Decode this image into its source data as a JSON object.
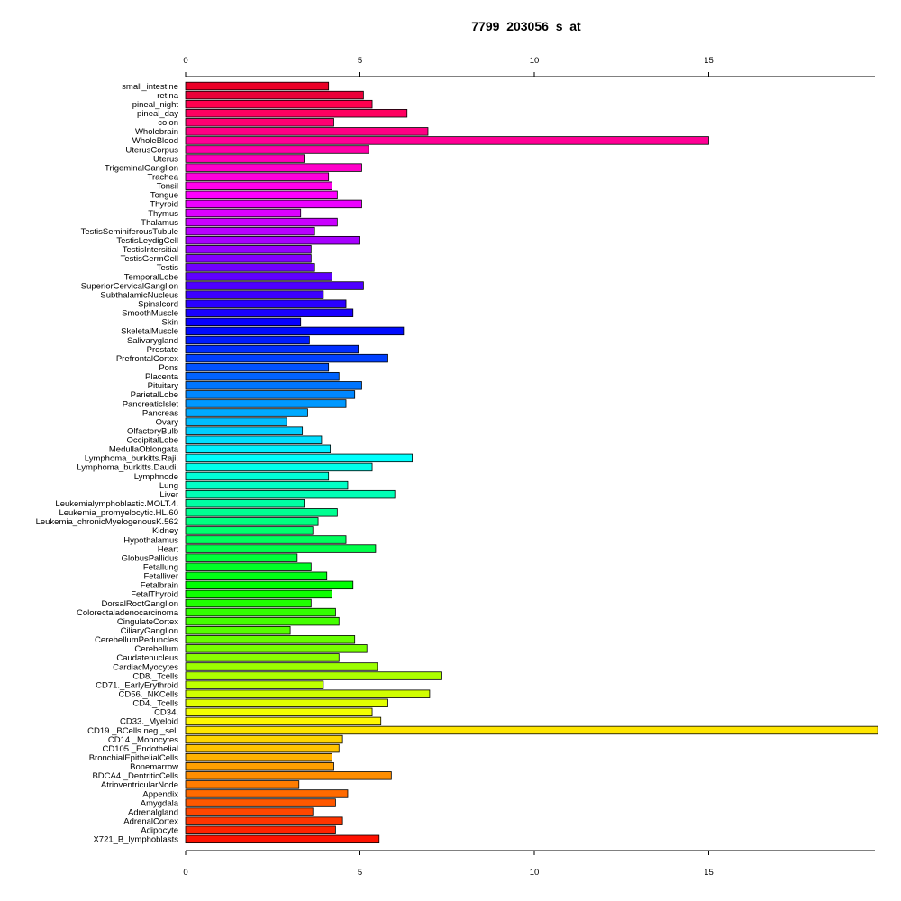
{
  "chart_data": {
    "type": "bar",
    "orientation": "horizontal",
    "title": "7799_203056_s_at",
    "xlabel": "",
    "ylabel": "",
    "xlim": [
      0,
      19.9
    ],
    "xticks": [
      0,
      5,
      10,
      15
    ],
    "grid": false,
    "categories": [
      "small_intestine",
      "retina",
      "pineal_night",
      "pineal_day",
      "colon",
      "Wholebrain",
      "WholeBlood",
      "UterusCorpus",
      "Uterus",
      "TrigeminalGanglion",
      "Trachea",
      "Tonsil",
      "Tongue",
      "Thyroid",
      "Thymus",
      "Thalamus",
      "TestisSeminiferousTubule",
      "TestisLeydigCell",
      "TestisIntersitial",
      "TestisGermCell",
      "Testis",
      "TemporalLobe",
      "SuperiorCervicalGanglion",
      "SubthalamicNucleus",
      "Spinalcord",
      "SmoothMuscle",
      "Skin",
      "SkeletalMuscle",
      "Salivarygland",
      "Prostate",
      "PrefrontalCortex",
      "Pons",
      "Placenta",
      "Pituitary",
      "ParietalLobe",
      "PancreaticIslet",
      "Pancreas",
      "Ovary",
      "OlfactoryBulb",
      "OccipitalLobe",
      "MedullaOblongata",
      "Lymphoma_burkitts.Raji.",
      "Lymphoma_burkitts.Daudi.",
      "Lymphnode",
      "Lung",
      "Liver",
      "Leukemialymphoblastic.MOLT.4.",
      "Leukemia_promyelocytic.HL.60",
      "Leukemia_chronicMyelogenousK.562",
      "Kidney",
      "Hypothalamus",
      "Heart",
      "GlobusPallidus",
      "Fetallung",
      "Fetalliver",
      "Fetalbrain",
      "FetalThyroid",
      "DorsalRootGanglion",
      "Colorectaladenocarcinoma",
      "CingulateCortex",
      "CiliaryGanglion",
      "CerebellumPeduncles",
      "Cerebellum",
      "Caudatenucleus",
      "CardiacMyocytes",
      "CD8._Tcells",
      "CD71._EarlyErythroid",
      "CD56._NKCells",
      "CD4._Tcells",
      "CD34.",
      "CD33._Myeloid",
      "CD19._BCells.neg._sel.",
      "CD14._Monocytes",
      "CD105._Endothelial",
      "BronchialEpithelialCells",
      "Bonemarrow",
      "BDCA4._DentriticCells",
      "AtrioventricularNode",
      "Appendix",
      "Amygdala",
      "Adrenalgland",
      "AdrenalCortex",
      "Adipocyte",
      "X721_B_lymphoblasts"
    ],
    "values": [
      4.1,
      5.1,
      5.35,
      6.35,
      4.25,
      6.95,
      15.0,
      5.25,
      3.4,
      5.05,
      4.1,
      4.2,
      4.35,
      5.05,
      3.3,
      4.35,
      3.7,
      5.0,
      3.6,
      3.6,
      3.7,
      4.2,
      5.1,
      3.95,
      4.6,
      4.8,
      3.3,
      6.25,
      3.55,
      4.95,
      5.8,
      4.1,
      4.4,
      5.05,
      4.85,
      4.6,
      3.5,
      2.9,
      3.35,
      3.9,
      4.15,
      6.5,
      5.35,
      4.1,
      4.65,
      6.0,
      3.4,
      4.35,
      3.8,
      3.65,
      4.6,
      5.45,
      3.2,
      3.6,
      4.05,
      4.8,
      4.2,
      3.6,
      4.3,
      4.4,
      3.0,
      4.85,
      5.2,
      4.4,
      5.5,
      7.35,
      3.95,
      7.0,
      5.8,
      5.35,
      5.6,
      19.85,
      4.5,
      4.4,
      4.2,
      4.25,
      5.9,
      3.25,
      4.65,
      4.3,
      3.65,
      4.5,
      4.3,
      5.55
    ],
    "color_scheme": "rainbow",
    "bar_outline": "#000000"
  }
}
